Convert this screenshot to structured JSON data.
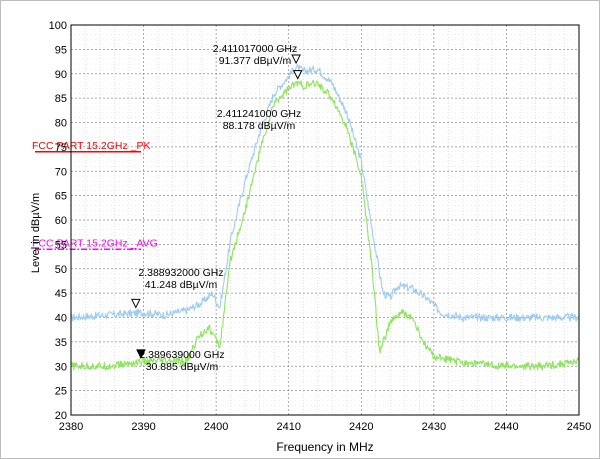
{
  "chart_data": {
    "type": "line",
    "xlabel": "Frequency in MHz",
    "ylabel": "Level in dBµV/m",
    "xlim": [
      2380,
      2450
    ],
    "ylim": [
      20,
      100
    ],
    "x_ticks": [
      "2380",
      "2390",
      "2400",
      "2410",
      "2420",
      "2430",
      "2440",
      "2450"
    ],
    "y_ticks": [
      "20",
      "25",
      "30",
      "35",
      "40",
      "45",
      "50",
      "55",
      "60",
      "65",
      "70",
      "75",
      "80",
      "85",
      "90",
      "95",
      "100"
    ],
    "grid": true,
    "series": [
      {
        "color": "#9ecbf2",
        "x": [
          2380,
          2385,
          2390,
          2393,
          2396,
          2398,
          2399.5,
          2400.5,
          2402,
          2404,
          2406,
          2408,
          2410,
          2411.017,
          2412,
          2414,
          2416,
          2418,
          2420,
          2421.5,
          2423,
          2424,
          2425,
          2427,
          2429,
          2431,
          2434,
          2440,
          2445,
          2450
        ],
        "y": [
          40,
          40.5,
          41,
          40.5,
          41.5,
          43,
          45,
          42,
          56,
          68,
          78,
          86,
          89.5,
          91.377,
          90.5,
          91,
          88,
          82,
          72,
          58,
          45,
          44,
          46.5,
          46,
          44,
          41,
          40,
          40,
          40,
          40
        ]
      },
      {
        "color": "#8ee35c",
        "x": [
          2380,
          2385,
          2389.639,
          2393,
          2396,
          2397.5,
          2399,
          2400.5,
          2402,
          2404,
          2406,
          2408,
          2410,
          2411.241,
          2412,
          2414,
          2416,
          2418,
          2420,
          2421.5,
          2422.5,
          2424,
          2425.5,
          2427,
          2428.5,
          2430,
          2433,
          2440,
          2445,
          2450
        ],
        "y": [
          30,
          30,
          30.885,
          31,
          31,
          36,
          38,
          34,
          52,
          62,
          74,
          84,
          87,
          88.178,
          87.5,
          88,
          85,
          79,
          69,
          50,
          33,
          39,
          41,
          40,
          35,
          32,
          31,
          30,
          30,
          31
        ]
      }
    ],
    "limit_lines": [
      {
        "label": "FCC PART 15.2GHz _PK",
        "y": 74,
        "color": "#ff0000",
        "style": "solid"
      },
      {
        "label": "FCC PART 15.2GHz _AVG",
        "y": 54,
        "color": "#ff00ff",
        "style": "dashdot"
      }
    ],
    "markers": [
      {
        "freq_label": "2.411017000 GHz",
        "level_label": "91.377 dBµV/m",
        "x": 2411.017,
        "y": 91.377,
        "symbol": "open-triangle"
      },
      {
        "freq_label": "2.411241000 GHz",
        "level_label": "88.178 dBµV/m",
        "x": 2411.241,
        "y": 88.178,
        "symbol": "open-triangle"
      },
      {
        "freq_label": "2.388932000 GHz",
        "level_label": "41.248 dBµV/m",
        "x": 2388.932,
        "y": 41.248,
        "symbol": "open-triangle"
      },
      {
        "freq_label": "2.389639000 GHz",
        "level_label": "30.885 dBµV/m",
        "x": 2389.639,
        "y": 30.885,
        "symbol": "filled-triangle"
      }
    ]
  }
}
